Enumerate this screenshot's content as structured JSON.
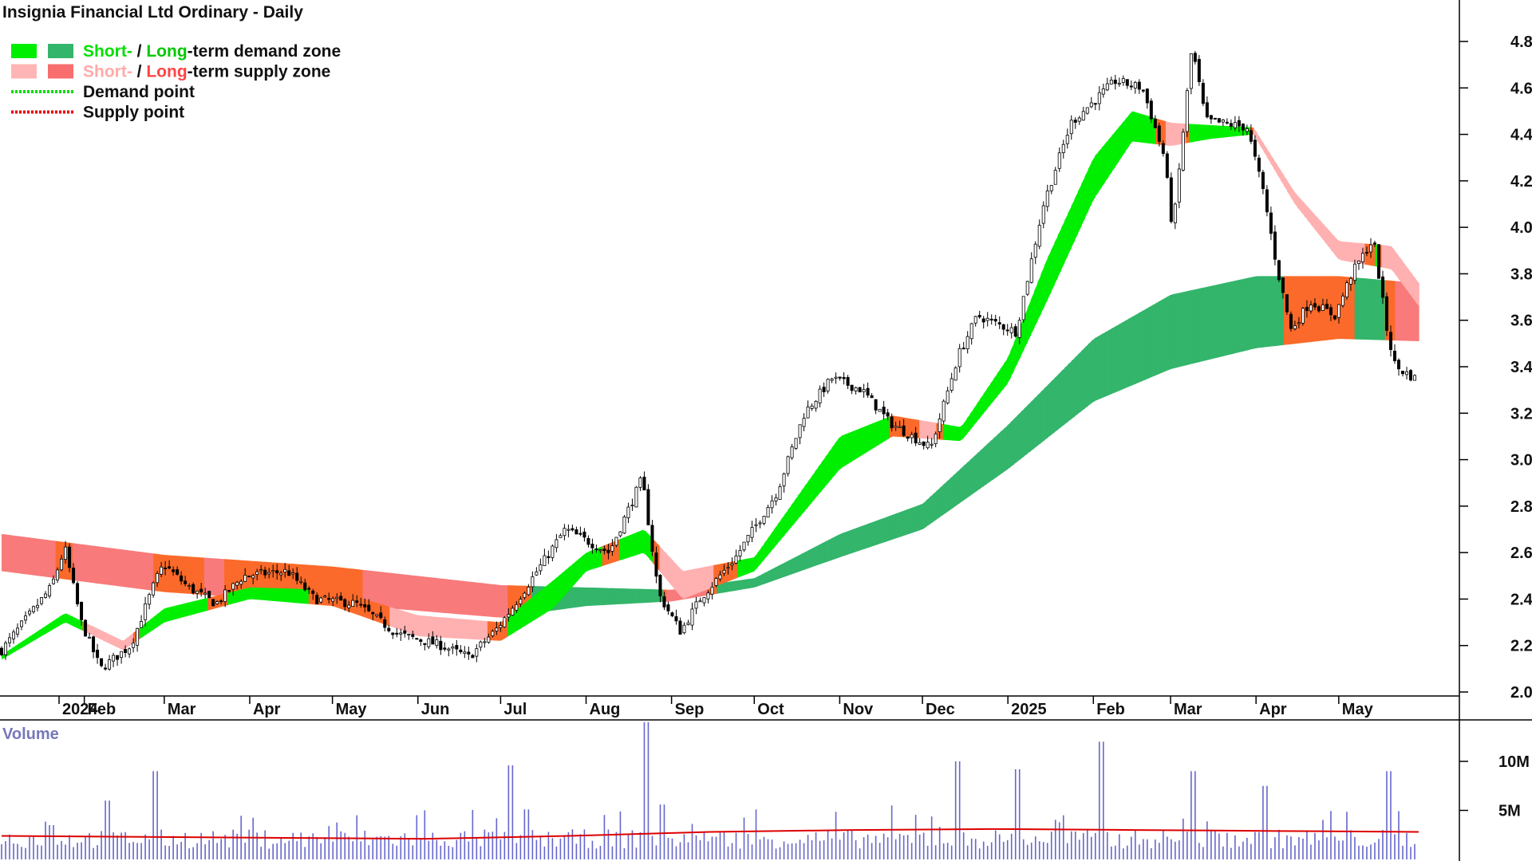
{
  "chart_data": {
    "type": "candlestick",
    "title": "Insignia Financial Ltd Ordinary - Daily",
    "y_axis": {
      "ticks": [
        "4.8",
        "4.6",
        "4.4",
        "4.2",
        "4.0",
        "3.8",
        "3.6",
        "3.4",
        "3.2",
        "3.0",
        "2.8",
        "2.6",
        "2.4",
        "2.2",
        "2.0"
      ],
      "ylim": [
        1.99,
        4.87
      ],
      "side": "right"
    },
    "x_axis": {
      "ticks": [
        "2024",
        "Feb",
        "Mar",
        "Apr",
        "May",
        "Jun",
        "Jul",
        "Aug",
        "Sep",
        "Oct",
        "Nov",
        "Dec",
        "2025",
        "Feb",
        "Mar",
        "Apr",
        "May"
      ]
    },
    "legend": {
      "placement": "top-left",
      "rows": [
        {
          "words": [
            "Short-",
            " / ",
            "Long",
            "-term demand zone"
          ],
          "colors": [
            "#00e000",
            "#111111",
            "#00c800",
            "#111111"
          ],
          "swatches": [
            "#00ee00",
            "#33b56b"
          ]
        },
        {
          "words": [
            "Short-",
            " / ",
            "Long",
            "-term supply zone"
          ],
          "colors": [
            "#ffaaaa",
            "#111111",
            "#ff4444",
            "#111111"
          ],
          "swatches": [
            "#ffb5b5",
            "#f86d6d"
          ]
        },
        {
          "words": [
            "Demand point"
          ],
          "colors": [
            "#111111"
          ],
          "line_color": "#00dd00"
        },
        {
          "words": [
            "Supply point"
          ],
          "colors": [
            "#111111"
          ],
          "line_color": "#ee0000"
        }
      ]
    },
    "colors": {
      "short_demand": "#00ee00",
      "long_demand": "#33b56b",
      "short_supply": "#ffb0b0",
      "long_supply": "#f87a7a",
      "overlap": "#fb6a2a",
      "candle": "#000000",
      "volume_bar": "#6666cc",
      "volume_ma": "#dd0000"
    },
    "price_path": [
      [
        "2024-01-02",
        2.18
      ],
      [
        "2024-01-20",
        2.45
      ],
      [
        "2024-01-25",
        2.62
      ],
      [
        "2024-01-31",
        2.3
      ],
      [
        "2024-02-07",
        2.1
      ],
      [
        "2024-02-18",
        2.2
      ],
      [
        "2024-02-27",
        2.48
      ],
      [
        "2024-03-01",
        2.55
      ],
      [
        "2024-03-10",
        2.45
      ],
      [
        "2024-03-20",
        2.38
      ],
      [
        "2024-03-30",
        2.5
      ],
      [
        "2024-04-15",
        2.52
      ],
      [
        "2024-04-25",
        2.4
      ],
      [
        "2024-05-10",
        2.38
      ],
      [
        "2024-05-25",
        2.25
      ],
      [
        "2024-06-10",
        2.2
      ],
      [
        "2024-06-20",
        2.15
      ],
      [
        "2024-06-30",
        2.27
      ],
      [
        "2024-07-05",
        2.35
      ],
      [
        "2024-07-25",
        2.7
      ],
      [
        "2024-08-10",
        2.6
      ],
      [
        "2024-08-22",
        2.92
      ],
      [
        "2024-08-28",
        2.42
      ],
      [
        "2024-09-05",
        2.26
      ],
      [
        "2024-09-12",
        2.4
      ],
      [
        "2024-09-25",
        2.58
      ],
      [
        "2024-10-10",
        2.86
      ],
      [
        "2024-10-20",
        3.2
      ],
      [
        "2024-10-30",
        3.35
      ],
      [
        "2024-11-10",
        3.3
      ],
      [
        "2024-11-20",
        3.16
      ],
      [
        "2024-12-05",
        3.05
      ],
      [
        "2024-12-15",
        3.45
      ],
      [
        "2024-12-22",
        3.62
      ],
      [
        "2025-01-05",
        3.55
      ],
      [
        "2025-01-15",
        4.1
      ],
      [
        "2025-01-25",
        4.45
      ],
      [
        "2025-02-10",
        4.63
      ],
      [
        "2025-02-20",
        4.6
      ],
      [
        "2025-02-28",
        4.3
      ],
      [
        "2025-03-03",
        3.98
      ],
      [
        "2025-03-10",
        4.78
      ],
      [
        "2025-03-15",
        4.46
      ],
      [
        "2025-03-30",
        4.43
      ],
      [
        "2025-04-05",
        4.15
      ],
      [
        "2025-04-10",
        3.82
      ],
      [
        "2025-04-15",
        3.56
      ],
      [
        "2025-04-22",
        3.68
      ],
      [
        "2025-05-01",
        3.62
      ],
      [
        "2025-05-07",
        3.8
      ],
      [
        "2025-05-15",
        3.95
      ],
      [
        "2025-05-20",
        3.55
      ],
      [
        "2025-05-23",
        3.4
      ],
      [
        "2025-05-30",
        3.35
      ]
    ],
    "long_zone": [
      [
        "2024-01-02",
        2.68,
        2.52
      ],
      [
        "2024-03-01",
        2.59,
        2.43
      ],
      [
        "2024-05-01",
        2.54,
        2.38
      ],
      [
        "2024-07-01",
        2.46,
        2.32
      ],
      [
        "2024-08-01",
        2.45,
        2.37
      ],
      [
        "2024-09-01",
        2.44,
        2.39
      ],
      [
        "2024-10-01",
        2.49,
        2.45
      ],
      [
        "2024-11-01",
        2.68,
        2.58
      ],
      [
        "2024-12-01",
        2.81,
        2.7
      ],
      [
        "2025-01-01",
        3.15,
        2.96
      ],
      [
        "2025-02-01",
        3.52,
        3.25
      ],
      [
        "2025-03-01",
        3.71,
        3.39
      ],
      [
        "2025-04-01",
        3.79,
        3.48
      ],
      [
        "2025-05-01",
        3.79,
        3.52
      ],
      [
        "2025-05-30",
        3.76,
        3.51
      ]
    ],
    "short_zone": [
      [
        "2024-01-02",
        2.16,
        2.14
      ],
      [
        "2024-01-25",
        2.34,
        2.3
      ],
      [
        "2024-02-15",
        2.22,
        2.18
      ],
      [
        "2024-03-01",
        2.36,
        2.3
      ],
      [
        "2024-04-01",
        2.45,
        2.4
      ],
      [
        "2024-05-01",
        2.44,
        2.37
      ],
      [
        "2024-06-01",
        2.33,
        2.24
      ],
      [
        "2024-07-01",
        2.3,
        2.22
      ],
      [
        "2024-07-20",
        2.48,
        2.36
      ],
      [
        "2024-08-01",
        2.6,
        2.52
      ],
      [
        "2024-08-22",
        2.7,
        2.6
      ],
      [
        "2024-09-05",
        2.52,
        2.4
      ],
      [
        "2024-10-01",
        2.58,
        2.52
      ],
      [
        "2024-11-01",
        3.1,
        2.96
      ],
      [
        "2024-11-20",
        3.19,
        3.1
      ],
      [
        "2024-12-15",
        3.14,
        3.08
      ],
      [
        "2025-01-01",
        3.44,
        3.33
      ],
      [
        "2025-01-15",
        3.86,
        3.68
      ],
      [
        "2025-02-01",
        4.3,
        4.12
      ],
      [
        "2025-02-15",
        4.5,
        4.37
      ],
      [
        "2025-03-01",
        4.45,
        4.35
      ],
      [
        "2025-03-15",
        4.44,
        4.38
      ],
      [
        "2025-03-31",
        4.43,
        4.4
      ],
      [
        "2025-04-15",
        4.15,
        4.1
      ],
      [
        "2025-05-01",
        3.94,
        3.86
      ],
      [
        "2025-05-20",
        3.92,
        3.82
      ],
      [
        "2025-05-30",
        3.76,
        3.66
      ]
    ],
    "volume": {
      "title": "Volume",
      "ticks": [
        "10M",
        "5M"
      ],
      "ylim": [
        0,
        14
      ],
      "typical_millions": 2.2,
      "ma_millions": [
        2.4,
        2.3,
        2.2,
        2.1,
        2.4,
        2.8,
        3.0,
        3.1,
        3.0,
        2.9,
        2.8
      ],
      "spikes": [
        [
          "2024-01-20",
          3.5
        ],
        [
          "2024-02-10",
          6.0
        ],
        [
          "2024-02-27",
          9.0
        ],
        [
          "2024-06-30",
          4.2
        ],
        [
          "2024-07-05",
          9.6
        ],
        [
          "2024-07-11",
          5.1
        ],
        [
          "2024-08-24",
          14.0
        ],
        [
          "2024-08-29",
          5.6
        ],
        [
          "2024-12-15",
          10.0
        ],
        [
          "2025-01-05",
          9.2
        ],
        [
          "2025-02-05",
          12.0
        ],
        [
          "2025-03-10",
          9.0
        ],
        [
          "2025-04-05",
          7.5
        ],
        [
          "2025-05-20",
          9.0
        ]
      ]
    }
  }
}
